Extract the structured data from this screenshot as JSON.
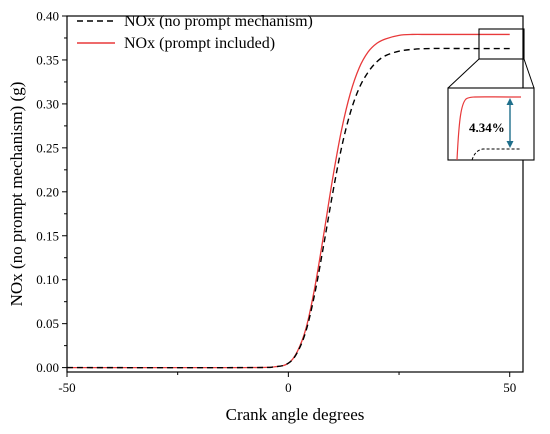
{
  "chart_data": {
    "type": "line",
    "xlabel": "Crank angle degrees",
    "ylabel": "NOx (no prompt mechanism) (g)",
    "xlim": [
      -50,
      53
    ],
    "ylim": [
      -0.005,
      0.4
    ],
    "x_ticks": [
      -50,
      0,
      50
    ],
    "x_tick_labels": [
      "-50",
      "0",
      "50"
    ],
    "y_ticks": [
      0.0,
      0.05,
      0.1,
      0.15,
      0.2,
      0.25,
      0.3,
      0.35,
      0.4
    ],
    "y_tick_labels": [
      "0.00",
      "0.05",
      "0.10",
      "0.15",
      "0.20",
      "0.25",
      "0.30",
      "0.35",
      "0.40"
    ],
    "grid": false,
    "legend_position": "top-left",
    "series": [
      {
        "name": "NOx (no prompt mechanism)",
        "color": "#000000",
        "style": "dashed",
        "x": [
          -50,
          -10,
          -3,
          0,
          2,
          4,
          6,
          8,
          10,
          12,
          14,
          16,
          18,
          20,
          22,
          25,
          28,
          32,
          40,
          50
        ],
        "y": [
          0.0,
          0.0,
          0.001,
          0.005,
          0.017,
          0.042,
          0.085,
          0.14,
          0.198,
          0.25,
          0.29,
          0.318,
          0.336,
          0.348,
          0.355,
          0.36,
          0.362,
          0.363,
          0.363,
          0.363
        ]
      },
      {
        "name": "NOx (prompt included)",
        "color": "#e8393a",
        "style": "solid",
        "x": [
          -50,
          -10,
          -3,
          0,
          2,
          4,
          6,
          8,
          10,
          12,
          14,
          16,
          18,
          20,
          22,
          25,
          28,
          32,
          40,
          50
        ],
        "y": [
          0.0,
          0.0,
          0.001,
          0.005,
          0.018,
          0.045,
          0.092,
          0.152,
          0.215,
          0.27,
          0.312,
          0.341,
          0.359,
          0.369,
          0.374,
          0.378,
          0.379,
          0.379,
          0.379,
          0.379
        ]
      }
    ],
    "annotation": {
      "label": "4.34%"
    }
  }
}
